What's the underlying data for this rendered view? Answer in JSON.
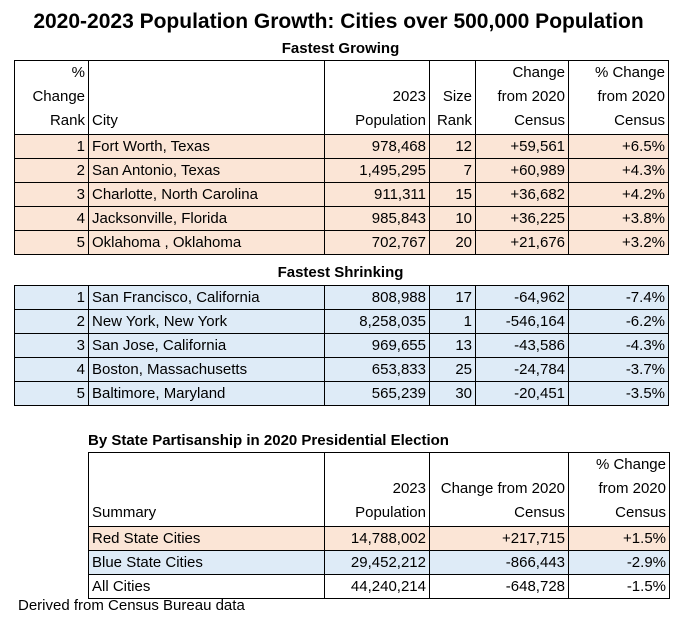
{
  "title": "2020-2023 Population Growth: Cities over 500,000 Population",
  "growing": {
    "label": "Fastest Growing",
    "headers": {
      "rank": "%\nChange\nRank",
      "city": "City",
      "population": "2023\nPopulation",
      "size_rank": "Size\nRank",
      "change": "Change\nfrom 2020\nCensus",
      "pct_change": "% Change\nfrom 2020\nCensus"
    },
    "rows": [
      {
        "rank": "1",
        "city": "Fort Worth, Texas",
        "population": "978,468",
        "size_rank": "12",
        "change": "+59,561",
        "pct": "+6.5%"
      },
      {
        "rank": "2",
        "city": "San Antonio, Texas",
        "population": "1,495,295",
        "size_rank": "7",
        "change": "+60,989",
        "pct": "+4.3%"
      },
      {
        "rank": "3",
        "city": "Charlotte, North Carolina",
        "population": "911,311",
        "size_rank": "15",
        "change": "+36,682",
        "pct": "+4.2%"
      },
      {
        "rank": "4",
        "city": "Jacksonville, Florida",
        "population": "985,843",
        "size_rank": "10",
        "change": "+36,225",
        "pct": "+3.8%"
      },
      {
        "rank": "5",
        "city": "Oklahoma , Oklahoma",
        "population": "702,767",
        "size_rank": "20",
        "change": "+21,676",
        "pct": "+3.2%"
      }
    ]
  },
  "shrinking": {
    "label": "Fastest Shrinking",
    "rows": [
      {
        "rank": "1",
        "city": "San Francisco, California",
        "population": "808,988",
        "size_rank": "17",
        "change": "-64,962",
        "pct": "-7.4%"
      },
      {
        "rank": "2",
        "city": "New York, New York",
        "population": "8,258,035",
        "size_rank": "1",
        "change": "-546,164",
        "pct": "-6.2%"
      },
      {
        "rank": "3",
        "city": "San Jose, California",
        "population": "969,655",
        "size_rank": "13",
        "change": "-43,586",
        "pct": "-4.3%"
      },
      {
        "rank": "4",
        "city": "Boston, Massachusetts",
        "population": "653,833",
        "size_rank": "25",
        "change": "-24,784",
        "pct": "-3.7%"
      },
      {
        "rank": "5",
        "city": "Baltimore, Maryland",
        "population": "565,239",
        "size_rank": "30",
        "change": "-20,451",
        "pct": "-3.5%"
      }
    ]
  },
  "partisan": {
    "label": "By State Partisanship in 2020 Presidential Election",
    "headers": {
      "summary": "Summary",
      "population": "2023\nPopulation",
      "change": "Change from 2020\nCensus",
      "pct_change": "% Change\nfrom 2020\nCensus"
    },
    "rows": [
      {
        "summary": "Red State Cities",
        "population": "14,788,002",
        "change": "+217,715",
        "pct": "+1.5%"
      },
      {
        "summary": "Blue State Cities",
        "population": "29,452,212",
        "change": "-866,443",
        "pct": "-2.9%"
      },
      {
        "summary": "All Cities",
        "population": "44,240,214",
        "change": "-648,728",
        "pct": "-1.5%"
      }
    ]
  },
  "footer": "Derived from Census Bureau data"
}
